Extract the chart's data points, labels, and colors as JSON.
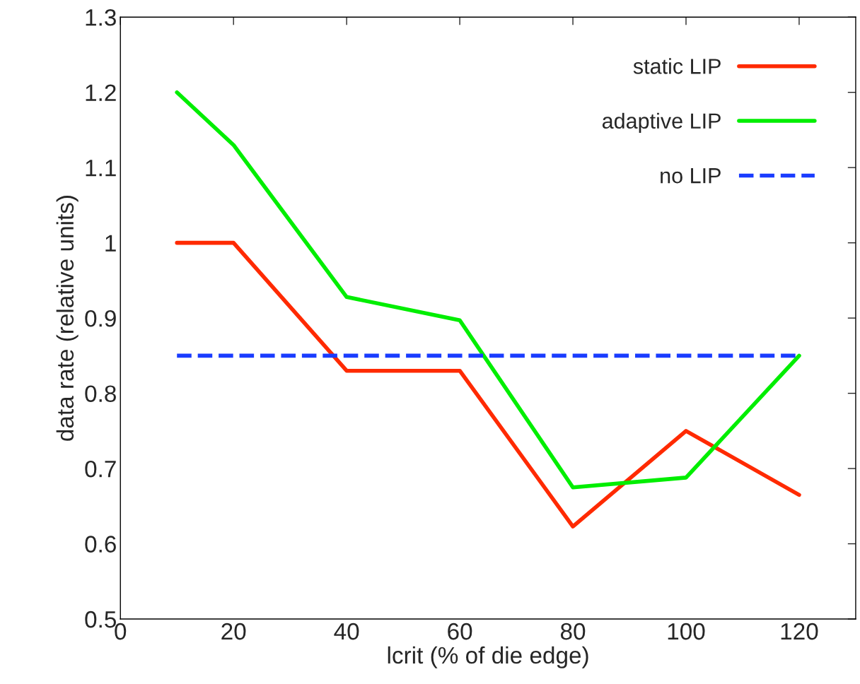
{
  "chart_data": {
    "type": "line",
    "xlabel": "lcrit (% of die edge)",
    "ylabel": "data rate (relative units)",
    "x": [
      10,
      20,
      40,
      60,
      80,
      100,
      120
    ],
    "series": [
      {
        "name": "static LIP",
        "color": "#ff2a00",
        "values": [
          1.0,
          1.0,
          0.83,
          0.83,
          0.623,
          0.75,
          0.665
        ]
      },
      {
        "name": "adaptive LIP",
        "color": "#00ee00",
        "values": [
          1.2,
          1.13,
          0.928,
          0.897,
          0.675,
          0.688,
          0.85
        ]
      },
      {
        "name": "no LIP",
        "color": "#1a3cff",
        "line_style": "dashed",
        "x": [
          10,
          120
        ],
        "values": [
          0.85,
          0.85
        ]
      }
    ],
    "xlim": [
      0,
      130
    ],
    "xticks": [
      0,
      20,
      40,
      60,
      80,
      100,
      120
    ],
    "ylim": [
      0.5,
      1.3
    ],
    "yticks": [
      0.5,
      0.6,
      0.7,
      0.8,
      0.9,
      1,
      1.1,
      1.2,
      1.3
    ],
    "legend": "top right",
    "grid": false,
    "marker": "none",
    "line_style": "solid"
  }
}
